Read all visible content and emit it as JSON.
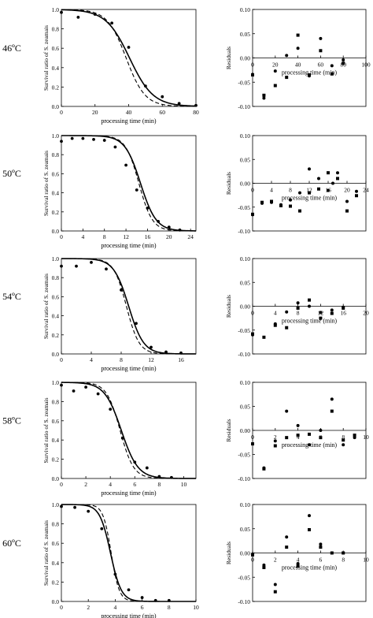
{
  "figure": {
    "chart_data": [
      {
        "type": "line",
        "panel": "46ºC survival",
        "temperature_label": "46ºC",
        "xlabel": "processing time (min)",
        "ylabel": "Survival ratio of S. zeamais",
        "xlim": [
          0,
          80
        ],
        "ylim": [
          0,
          1.0
        ],
        "xticks": [
          "0",
          "20",
          "40",
          "60",
          "80"
        ],
        "yticks": [
          "0.0",
          "0.2",
          "0.4",
          "0.6",
          "0.8",
          "1.0"
        ],
        "observed": {
          "x": [
            0,
            10,
            20,
            30,
            40,
            50,
            60,
            70,
            80
          ],
          "y": [
            0.97,
            0.92,
            0.95,
            0.86,
            0.61,
            0.21,
            0.1,
            0.03,
            0.01
          ]
        },
        "series": [
          {
            "style": "solid",
            "model": {
              "half": 40.5,
              "width": 7.0
            }
          },
          {
            "style": "dashed",
            "model": {
              "half": 38.5,
              "width": 5.6
            }
          }
        ]
      },
      {
        "type": "scatter",
        "panel": "46ºC residuals",
        "xlabel": "processing time (min)",
        "ylabel": "Residuals",
        "xlim": [
          0,
          100
        ],
        "ylim": [
          -0.1,
          0.1
        ],
        "xticks": [
          "0",
          "20",
          "40",
          "60",
          "80",
          "100"
        ],
        "yticks": [
          "0.10",
          "0.05",
          "0.00",
          "-0.05",
          "-0.10"
        ],
        "series": [
          {
            "marker": "circle",
            "x": [
              0,
              10,
              20,
              30,
              40,
              50,
              60,
              70,
              80
            ],
            "y": [
              -0.034,
              -0.083,
              -0.027,
              0.005,
              0.02,
              -0.037,
              0.04,
              -0.016,
              -0.004
            ]
          },
          {
            "marker": "square",
            "x": [
              0,
              10,
              20,
              30,
              40,
              50,
              60,
              70,
              80
            ],
            "y": [
              -0.035,
              -0.077,
              -0.057,
              -0.04,
              0.047,
              -0.035,
              0.015,
              -0.033,
              -0.011
            ]
          }
        ]
      },
      {
        "type": "line",
        "panel": "50ºC survival",
        "temperature_label": "50ºC",
        "xlabel": "processing time (min)",
        "ylabel": "Survival ratio of S. zeamais",
        "xlim": [
          0,
          25
        ],
        "ylim": [
          0,
          1.0
        ],
        "xticks": [
          "0",
          "4",
          "8",
          "12",
          "16",
          "20",
          "24"
        ],
        "yticks": [
          "0.0",
          "0.2",
          "0.4",
          "0.6",
          "0.8",
          "1.0"
        ],
        "observed": {
          "x": [
            0,
            2,
            4,
            6,
            8,
            10,
            12,
            14,
            16,
            18,
            20,
            22
          ],
          "y": [
            0.94,
            0.97,
            0.97,
            0.96,
            0.95,
            0.88,
            0.69,
            0.43,
            0.24,
            0.1,
            0.04,
            0.01
          ]
        },
        "series": [
          {
            "style": "solid",
            "model": {
              "half": 14.7,
              "width": 1.45
            }
          },
          {
            "style": "dashed",
            "model": {
              "half": 14.4,
              "width": 1.25
            }
          }
        ]
      },
      {
        "type": "scatter",
        "panel": "50ºC residuals",
        "xlabel": "processing time (min)",
        "ylabel": "Residuals",
        "xlim": [
          0,
          24
        ],
        "ylim": [
          -0.1,
          0.1
        ],
        "xticks": [
          "0",
          "4",
          "8",
          "12",
          "16",
          "20",
          "24"
        ],
        "yticks": [
          "0.10",
          "0.05",
          "0.00",
          "-0.05",
          "-0.10"
        ],
        "series": [
          {
            "marker": "circle",
            "x": [
              0,
              2,
              4,
              6,
              8,
              10,
              12,
              14,
              16,
              17,
              18,
              20,
              22
            ],
            "y": [
              -0.066,
              -0.042,
              -0.04,
              -0.045,
              -0.035,
              -0.02,
              0.03,
              0.01,
              -0.015,
              0.0,
              0.022,
              -0.038,
              -0.017
            ]
          },
          {
            "marker": "square",
            "x": [
              0,
              2,
              4,
              6,
              8,
              10,
              12,
              14,
              16,
              18,
              20,
              22
            ],
            "y": [
              -0.065,
              -0.04,
              -0.038,
              -0.047,
              -0.048,
              -0.058,
              -0.02,
              -0.012,
              0.022,
              0.01,
              -0.058,
              -0.026
            ]
          }
        ]
      },
      {
        "type": "line",
        "panel": "54ºC survival",
        "temperature_label": "54ºC",
        "xlabel": "processing time (min)",
        "ylabel": "Survival ratio of S. zeamais",
        "xlim": [
          0,
          18
        ],
        "ylim": [
          0,
          1.0
        ],
        "xticks": [
          "0",
          "4",
          "8",
          "12",
          "16"
        ],
        "yticks": [
          "0.0",
          "0.2",
          "0.4",
          "0.6",
          "0.8",
          "1.0"
        ],
        "observed": {
          "x": [
            0,
            2,
            4,
            6,
            8,
            10,
            12,
            14,
            16
          ],
          "y": [
            0.92,
            0.92,
            0.96,
            0.89,
            0.67,
            0.32,
            0.07,
            0.02,
            0.01
          ]
        },
        "series": [
          {
            "style": "solid",
            "model": {
              "half": 9.0,
              "width": 1.0
            }
          },
          {
            "style": "dashed",
            "model": {
              "half": 8.7,
              "width": 0.85
            }
          }
        ]
      },
      {
        "type": "scatter",
        "panel": "54ºC residuals",
        "xlabel": "processing time (min)",
        "ylabel": "Residuals",
        "xlim": [
          0,
          20
        ],
        "ylim": [
          -0.1,
          0.1
        ],
        "xticks": [
          "0",
          "4",
          "8",
          "12",
          "16",
          "20"
        ],
        "yticks": [
          "0.10",
          "0.05",
          "0.00",
          "-0.05",
          "-0.10"
        ],
        "series": [
          {
            "marker": "circle",
            "x": [
              0,
              4,
              6,
              8,
              10,
              12,
              14,
              16
            ],
            "y": [
              -0.06,
              -0.037,
              -0.012,
              0.007,
              0.0,
              -0.013,
              -0.008,
              -0.002
            ]
          },
          {
            "marker": "square",
            "x": [
              0,
              2,
              4,
              6,
              8,
              10,
              12,
              14,
              16
            ],
            "y": [
              -0.058,
              -0.065,
              -0.04,
              -0.045,
              -0.004,
              0.013,
              -0.025,
              -0.015,
              -0.004
            ]
          }
        ]
      },
      {
        "type": "line",
        "panel": "58ºC survival",
        "temperature_label": "58ºC",
        "xlabel": "processing time (min)",
        "ylabel": "Survival ratio of S. zeamais",
        "xlim": [
          0,
          11
        ],
        "ylim": [
          0,
          1.0
        ],
        "xticks": [
          "0",
          "2",
          "4",
          "6",
          "8",
          "10"
        ],
        "yticks": [
          "0.0",
          "0.2",
          "0.4",
          "0.6",
          "0.8",
          "1.0"
        ],
        "observed": {
          "x": [
            0,
            1,
            2,
            3,
            4,
            5,
            6,
            7,
            8,
            9
          ],
          "y": [
            0.97,
            0.91,
            0.95,
            0.88,
            0.72,
            0.42,
            0.17,
            0.11,
            0.02,
            0.01
          ]
        },
        "series": [
          {
            "style": "solid",
            "model": {
              "half": 4.9,
              "width": 0.68
            }
          },
          {
            "style": "dashed",
            "model": {
              "half": 4.8,
              "width": 0.55
            }
          }
        ]
      },
      {
        "type": "scatter",
        "panel": "58ºC residuals",
        "xlabel": "processing time (min)",
        "ylabel": "Residuals",
        "xlim": [
          0,
          10
        ],
        "ylim": [
          -0.1,
          0.1
        ],
        "xticks": [
          "0",
          "2",
          "4",
          "6",
          "8",
          "10"
        ],
        "yticks": [
          "0.10",
          "0.05",
          "0.00",
          "-0.05",
          "-0.10"
        ],
        "series": [
          {
            "marker": "circle",
            "x": [
              0,
              1,
              2,
              3,
              4,
              5,
              6,
              7,
              8,
              9
            ],
            "y": [
              -0.028,
              -0.078,
              -0.022,
              0.04,
              0.01,
              -0.03,
              0.0,
              0.065,
              -0.03,
              -0.015
            ]
          },
          {
            "marker": "square",
            "x": [
              0,
              1,
              2,
              3,
              4,
              5,
              6,
              7,
              8,
              9
            ],
            "y": [
              -0.028,
              -0.08,
              -0.032,
              -0.015,
              -0.01,
              -0.008,
              -0.015,
              0.04,
              -0.02,
              -0.01
            ]
          }
        ]
      },
      {
        "type": "line",
        "panel": "60ºC survival",
        "temperature_label": "60ºC",
        "xlabel": "processing time (min)",
        "ylabel": "Survival ratio of S. zeamais",
        "xlim": [
          0,
          10
        ],
        "ylim": [
          0,
          1.0
        ],
        "xticks": [
          "0",
          "2",
          "4",
          "6",
          "8",
          "10"
        ],
        "yticks": [
          "0.0",
          "0.2",
          "0.4",
          "0.6",
          "0.8",
          "1.0"
        ],
        "observed": {
          "x": [
            0,
            1,
            2,
            3,
            4,
            5,
            6,
            7,
            8
          ],
          "y": [
            0.98,
            0.97,
            0.93,
            0.75,
            0.28,
            0.12,
            0.04,
            0.01,
            0.01
          ]
        },
        "series": [
          {
            "style": "solid",
            "model": {
              "half": 3.65,
              "width": 0.4
            }
          },
          {
            "style": "dashed",
            "model": {
              "half": 3.7,
              "width": 0.3
            }
          }
        ]
      },
      {
        "type": "scatter",
        "panel": "60ºC residuals",
        "xlabel": "processing time (min)",
        "ylabel": "Residuals",
        "xlim": [
          0,
          10
        ],
        "ylim": [
          -0.1,
          0.1
        ],
        "xticks": [
          "0",
          "2",
          "4",
          "6",
          "8",
          "10"
        ],
        "yticks": [
          "0.10",
          "0.05",
          "0.00",
          "-0.05",
          "-0.10"
        ],
        "series": [
          {
            "marker": "circle",
            "x": [
              0,
              1,
              2,
              3,
              4,
              5,
              6,
              7,
              8
            ],
            "y": [
              -0.002,
              -0.025,
              -0.065,
              0.033,
              -0.022,
              0.077,
              0.018,
              0.0,
              0.0
            ]
          },
          {
            "marker": "square",
            "x": [
              0,
              1,
              2,
              3,
              4,
              5,
              6,
              7,
              8
            ],
            "y": [
              -0.004,
              -0.03,
              -0.08,
              0.012,
              -0.027,
              0.048,
              0.012,
              0.0,
              0.0
            ]
          }
        ]
      }
    ]
  }
}
